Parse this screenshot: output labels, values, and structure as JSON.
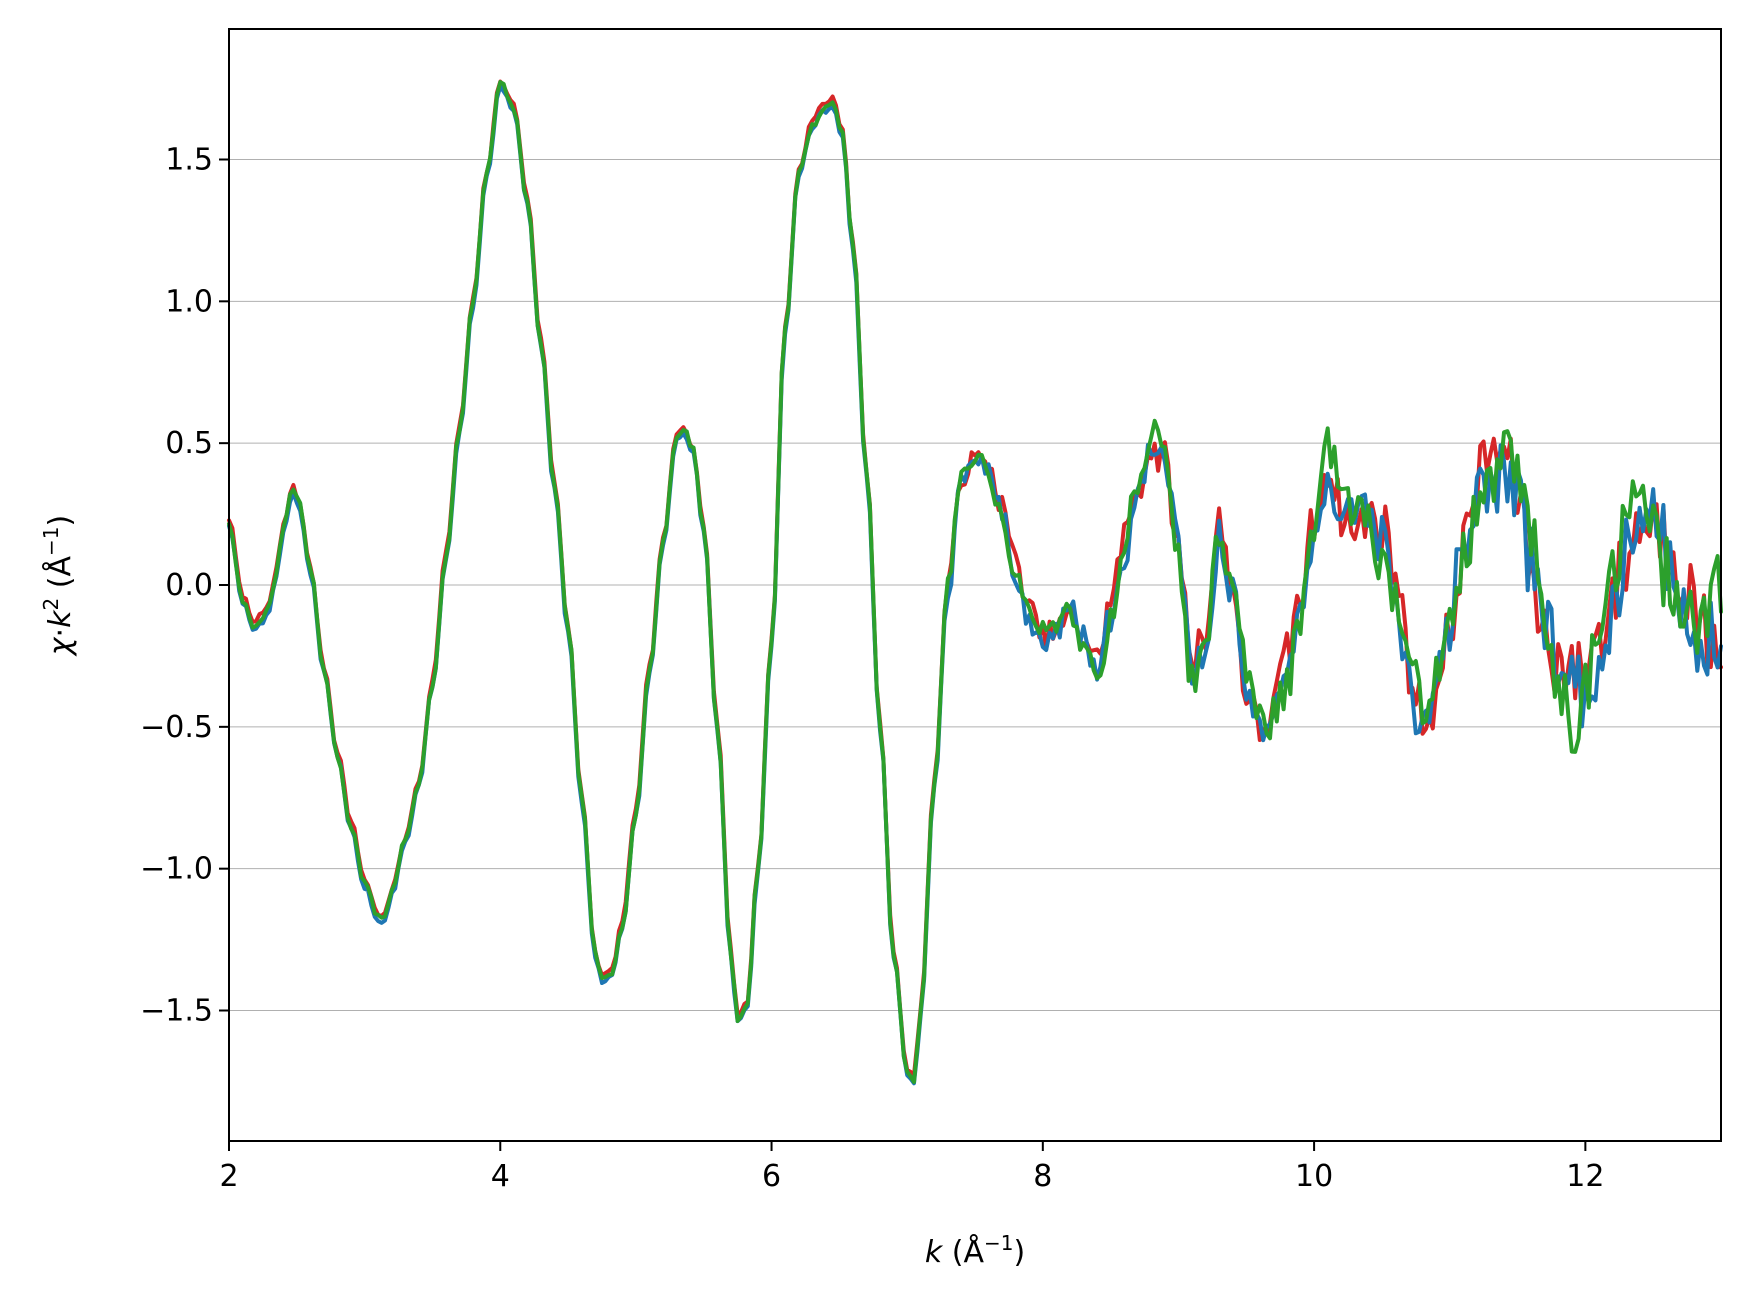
{
  "chart_data": {
    "type": "line",
    "title": "",
    "xlabel": {
      "var": "k",
      "unit": "(Å",
      "sup": "−1",
      "close": ")"
    },
    "ylabel": {
      "chi": "χ",
      "dot": "·",
      "var": "k",
      "pow": "2",
      "unit": "(Å",
      "sup": "−1",
      "close": ")"
    },
    "xlim": [
      2,
      13
    ],
    "ylim": [
      -1.96,
      1.96
    ],
    "xticks": [
      2,
      4,
      6,
      8,
      10,
      12
    ],
    "xtick_labels": [
      "2",
      "4",
      "6",
      "8",
      "10",
      "12"
    ],
    "yticks": [
      -1.5,
      -1.0,
      -0.5,
      0.0,
      0.5,
      1.0,
      1.5
    ],
    "ytick_labels": [
      "−1.5",
      "−1.0",
      "−0.5",
      "0.0",
      "0.5",
      "1.0",
      "1.5"
    ],
    "grid": "horizontal",
    "legend": "none",
    "x_step": 0.025,
    "signal": [
      [
        2.0,
        0.22
      ],
      [
        2.1,
        -0.05
      ],
      [
        2.18,
        -0.14
      ],
      [
        2.25,
        -0.12
      ],
      [
        2.3,
        -0.07
      ],
      [
        2.35,
        0.05
      ],
      [
        2.4,
        0.2
      ],
      [
        2.47,
        0.34
      ],
      [
        2.52,
        0.28
      ],
      [
        2.6,
        0.05
      ],
      [
        2.7,
        -0.3
      ],
      [
        2.8,
        -0.6
      ],
      [
        2.9,
        -0.85
      ],
      [
        3.0,
        -1.05
      ],
      [
        3.1,
        -1.17
      ],
      [
        3.15,
        -1.17
      ],
      [
        3.2,
        -1.08
      ],
      [
        3.3,
        -0.9
      ],
      [
        3.4,
        -0.7
      ],
      [
        3.5,
        -0.35
      ],
      [
        3.6,
        0.1
      ],
      [
        3.7,
        0.55
      ],
      [
        3.8,
        1.0
      ],
      [
        3.9,
        1.45
      ],
      [
        4.0,
        1.77
      ],
      [
        4.1,
        1.68
      ],
      [
        4.2,
        1.35
      ],
      [
        4.3,
        0.85
      ],
      [
        4.4,
        0.35
      ],
      [
        4.5,
        -0.15
      ],
      [
        4.6,
        -0.75
      ],
      [
        4.7,
        -1.3
      ],
      [
        4.75,
        -1.39
      ],
      [
        4.82,
        -1.37
      ],
      [
        4.9,
        -1.2
      ],
      [
        5.0,
        -0.8
      ],
      [
        5.1,
        -0.3
      ],
      [
        5.2,
        0.15
      ],
      [
        5.3,
        0.52
      ],
      [
        5.35,
        0.55
      ],
      [
        5.42,
        0.48
      ],
      [
        5.5,
        0.2
      ],
      [
        5.6,
        -0.5
      ],
      [
        5.7,
        -1.3
      ],
      [
        5.75,
        -1.53
      ],
      [
        5.82,
        -1.48
      ],
      [
        5.9,
        -1.0
      ],
      [
        6.0,
        -0.2
      ],
      [
        6.1,
        0.9
      ],
      [
        6.2,
        1.45
      ],
      [
        6.3,
        1.62
      ],
      [
        6.38,
        1.68
      ],
      [
        6.45,
        1.7
      ],
      [
        6.52,
        1.6
      ],
      [
        6.6,
        1.2
      ],
      [
        6.7,
        0.4
      ],
      [
        6.8,
        -0.5
      ],
      [
        6.9,
        -1.3
      ],
      [
        7.0,
        -1.72
      ],
      [
        7.05,
        -1.75
      ],
      [
        7.1,
        -1.5
      ],
      [
        7.2,
        -0.7
      ],
      [
        7.3,
        0.0
      ],
      [
        7.4,
        0.38
      ],
      [
        7.5,
        0.45
      ],
      [
        7.6,
        0.4
      ],
      [
        7.7,
        0.25
      ],
      [
        7.8,
        0.05
      ],
      [
        7.9,
        -0.1
      ],
      [
        8.0,
        -0.18
      ],
      [
        8.1,
        -0.15
      ],
      [
        8.2,
        -0.1
      ],
      [
        8.3,
        -0.2
      ],
      [
        8.4,
        -0.3
      ],
      [
        8.5,
        -0.1
      ],
      [
        8.6,
        0.15
      ],
      [
        8.7,
        0.35
      ],
      [
        8.8,
        0.5
      ],
      [
        8.9,
        0.45
      ],
      [
        9.0,
        0.1
      ],
      [
        9.1,
        -0.3
      ],
      [
        9.2,
        -0.2
      ],
      [
        9.3,
        0.2
      ],
      [
        9.4,
        0.0
      ],
      [
        9.5,
        -0.35
      ],
      [
        9.6,
        -0.5
      ],
      [
        9.7,
        -0.45
      ],
      [
        9.8,
        -0.3
      ],
      [
        9.9,
        -0.1
      ],
      [
        10.0,
        0.2
      ],
      [
        10.1,
        0.45
      ],
      [
        10.2,
        0.3
      ],
      [
        10.3,
        0.2
      ],
      [
        10.4,
        0.22
      ],
      [
        10.5,
        0.15
      ],
      [
        10.6,
        0.0
      ],
      [
        10.7,
        -0.3
      ],
      [
        10.8,
        -0.45
      ],
      [
        10.9,
        -0.35
      ],
      [
        11.0,
        -0.15
      ],
      [
        11.1,
        0.1
      ],
      [
        11.2,
        0.3
      ],
      [
        11.3,
        0.4
      ],
      [
        11.4,
        0.45
      ],
      [
        11.5,
        0.35
      ],
      [
        11.6,
        0.1
      ],
      [
        11.7,
        -0.15
      ],
      [
        11.8,
        -0.3
      ],
      [
        11.9,
        -0.4
      ],
      [
        12.0,
        -0.35
      ],
      [
        12.1,
        -0.2
      ],
      [
        12.2,
        0.0
      ],
      [
        12.3,
        0.15
      ],
      [
        12.4,
        0.25
      ],
      [
        12.5,
        0.2
      ],
      [
        12.6,
        0.1
      ],
      [
        12.7,
        0.0
      ],
      [
        12.8,
        -0.1
      ],
      [
        12.9,
        -0.15
      ],
      [
        13.0,
        -0.1
      ]
    ],
    "series": [
      {
        "color": "#d62728",
        "offset": 0.012,
        "phase": 0.9,
        "seed": 7
      },
      {
        "color": "#1f77b4",
        "offset": -0.012,
        "phase": 2.3,
        "seed": 19
      },
      {
        "color": "#2ca02c",
        "offset": 0.0,
        "phase": 4.1,
        "seed": 31
      }
    ]
  }
}
